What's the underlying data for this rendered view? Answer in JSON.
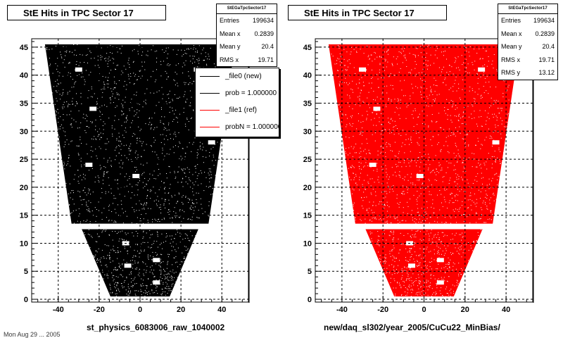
{
  "chart_data": [
    {
      "type": "scatter",
      "title": "StE Hits in TPC Sector 17",
      "xlabel": "st_physics_6083006_raw_1040002",
      "ylabel": "",
      "xlim": [
        -53,
        53
      ],
      "ylim": [
        -0.5,
        46.5
      ],
      "xticks": [
        -40,
        -20,
        0,
        20,
        40
      ],
      "yticks": [
        0,
        5,
        10,
        15,
        20,
        25,
        30,
        35,
        40,
        45
      ],
      "grid": true,
      "marker_color": "#000000",
      "stats": {
        "name": "StEGaTpcSector17",
        "rows": [
          {
            "label": "Entries",
            "value": "199634"
          },
          {
            "label": "Mean x",
            "value": "0.2839"
          },
          {
            "label": "Mean y",
            "value": "20.4"
          },
          {
            "label": "RMS x",
            "value": "19.71"
          }
        ]
      },
      "legend": {
        "position": "top-right",
        "entries": [
          {
            "label": "_file0 (new)",
            "color": "#000000"
          },
          {
            "label": "prob = 1.000000",
            "color": "#000000"
          },
          {
            "label": "_file1 (ref)",
            "color": "#ff0000"
          },
          {
            "label": "probN = 1.000000",
            "color": "#ff0000"
          }
        ]
      },
      "regions": [
        {
          "y_range": [
            13.5,
            45.5
          ],
          "x_at_bottom": [
            -33.5,
            33.5
          ],
          "x_at_top": [
            -46.5,
            46.5
          ]
        },
        {
          "y_range": [
            0.5,
            12.5
          ],
          "x_at_bottom": [
            -14.5,
            14.5
          ],
          "x_at_top": [
            -28.5,
            28.5
          ]
        }
      ],
      "voids": [
        {
          "x": -30,
          "y": 41
        },
        {
          "x": 28,
          "y": 41
        },
        {
          "x": -23,
          "y": 34
        },
        {
          "x": -25,
          "y": 24
        },
        {
          "x": -2,
          "y": 22
        },
        {
          "x": 35,
          "y": 28
        },
        {
          "x": -7,
          "y": 10
        },
        {
          "x": 8,
          "y": 7
        },
        {
          "x": -6,
          "y": 6
        },
        {
          "x": 8,
          "y": 3
        }
      ]
    },
    {
      "type": "scatter",
      "title": "StE Hits in TPC Sector 17",
      "xlabel": "new/daq_sl302/year_2005/CuCu22_MinBias/",
      "ylabel": "",
      "xlim": [
        -53,
        53
      ],
      "ylim": [
        -0.5,
        46.5
      ],
      "xticks": [
        -40,
        -20,
        0,
        20,
        40
      ],
      "yticks": [
        0,
        5,
        10,
        15,
        20,
        25,
        30,
        35,
        40,
        45
      ],
      "grid": true,
      "marker_color": "#ff0000",
      "stats": {
        "name": "StEGaTpcSector17",
        "rows": [
          {
            "label": "Entries",
            "value": "199634"
          },
          {
            "label": "Mean x",
            "value": "0.2839"
          },
          {
            "label": "Mean y",
            "value": "20.4"
          },
          {
            "label": "RMS x",
            "value": "19.71"
          },
          {
            "label": "RMS y",
            "value": "13.12"
          }
        ]
      },
      "regions": [
        {
          "y_range": [
            13.5,
            45.5
          ],
          "x_at_bottom": [
            -33.5,
            33.5
          ],
          "x_at_top": [
            -46.5,
            46.5
          ]
        },
        {
          "y_range": [
            0.5,
            12.5
          ],
          "x_at_bottom": [
            -14.5,
            14.5
          ],
          "x_at_top": [
            -28.5,
            28.5
          ]
        }
      ],
      "voids": [
        {
          "x": -30,
          "y": 41
        },
        {
          "x": 28,
          "y": 41
        },
        {
          "x": -23,
          "y": 34
        },
        {
          "x": -25,
          "y": 24
        },
        {
          "x": -2,
          "y": 22
        },
        {
          "x": 35,
          "y": 28
        },
        {
          "x": -7,
          "y": 10
        },
        {
          "x": 8,
          "y": 7
        },
        {
          "x": -6,
          "y": 6
        },
        {
          "x": 8,
          "y": 3
        }
      ]
    }
  ],
  "footer": "Mon Aug 29 ... 2005"
}
